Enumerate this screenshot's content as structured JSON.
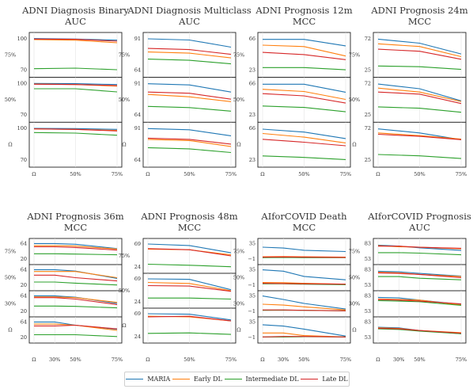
{
  "legend": [
    {
      "name": "MARIA",
      "color": "#1f77b4"
    },
    {
      "name": "Early DL",
      "color": "#ff7f0e"
    },
    {
      "name": "Intermediate DL",
      "color": "#2ca02c"
    },
    {
      "name": "Late DL",
      "color": "#d62728"
    }
  ],
  "chart_data": [
    {
      "type": "line",
      "title": [
        "ADNI Diagnosis Binary",
        "AUC"
      ],
      "x_labels": [
        "Ω",
        "50%",
        "75%"
      ],
      "rows": [
        {
          "ylabel": "75%",
          "ylim": [
            67,
            102
          ],
          "yticks": [
            "100",
            "70"
          ],
          "series": [
            [
              100,
              99.5,
              98.5
            ],
            [
              99,
              98.5,
              96
            ],
            [
              71.5,
              72,
              70.5
            ],
            [
              99.5,
              99.3,
              97.5
            ]
          ]
        },
        {
          "ylabel": "50%",
          "ylim": [
            67,
            102
          ],
          "yticks": [
            "100",
            "70"
          ],
          "series": [
            [
              100,
              99.8,
              99
            ],
            [
              99.5,
              99,
              97.5
            ],
            [
              95,
              95,
              92
            ],
            [
              99.3,
              99,
              98
            ]
          ]
        },
        {
          "ylabel": "Ω",
          "ylim": [
            67,
            102
          ],
          "yticks": [
            "100",
            "70"
          ],
          "series": [
            [
              100,
              99.8,
              99
            ],
            [
              99.5,
              99,
              98
            ],
            [
              96,
              95.5,
              93.5
            ],
            [
              99.5,
              99,
              97.5
            ]
          ]
        }
      ]
    },
    {
      "type": "line",
      "title": [
        "ADNI Diagnosis Multiclass",
        "AUC"
      ],
      "x_labels": [
        "Ω",
        "50%",
        "75%"
      ],
      "rows": [
        {
          "ylabel": "75%",
          "ylim": [
            62,
            93
          ],
          "yticks": [
            "91",
            "64"
          ],
          "series": [
            [
              91,
              90,
              84
            ],
            [
              80,
              79,
              75
            ],
            [
              74,
              73,
              70
            ],
            [
              83,
              82,
              78
            ]
          ]
        },
        {
          "ylabel": "50%",
          "ylim": [
            62,
            93
          ],
          "yticks": [
            "91",
            "64"
          ],
          "series": [
            [
              91,
              90,
              84
            ],
            [
              82,
              80,
              76
            ],
            [
              72,
              71,
              68
            ],
            [
              84,
              83,
              78
            ]
          ]
        },
        {
          "ylabel": "Ω",
          "ylim": [
            62,
            93
          ],
          "yticks": [
            "91",
            "64"
          ],
          "series": [
            [
              91,
              90,
              85
            ],
            [
              82,
              81,
              76
            ],
            [
              75,
              74,
              71
            ],
            [
              83,
              82,
              78
            ]
          ]
        }
      ]
    },
    {
      "type": "line",
      "title": [
        "ADNI Prognosis 12m",
        "MCC"
      ],
      "x_labels": [
        "Ω",
        "50%",
        "75%"
      ],
      "rows": [
        {
          "ylabel": "75%",
          "ylim": [
            19,
            70
          ],
          "yticks": [
            "66",
            "23"
          ],
          "series": [
            [
              66,
              66,
              57
            ],
            [
              58,
              56,
              43
            ],
            [
              27,
              27,
              24
            ],
            [
              48,
              45,
              38
            ]
          ]
        },
        {
          "ylabel": "50%",
          "ylim": [
            19,
            70
          ],
          "yticks": [
            "66",
            "23"
          ],
          "series": [
            [
              66,
              66,
              55
            ],
            [
              59,
              56,
              45
            ],
            [
              36,
              34,
              28
            ],
            [
              53,
              50,
              40
            ]
          ]
        },
        {
          "ylabel": "Ω",
          "ylim": [
            19,
            70
          ],
          "yticks": [
            "66",
            "23"
          ],
          "series": [
            [
              66,
              62,
              53
            ],
            [
              60,
              55,
              47
            ],
            [
              29,
              27,
              24
            ],
            [
              52,
              48,
              43
            ]
          ]
        }
      ]
    },
    {
      "type": "line",
      "title": [
        "ADNI Prognosis 24m",
        "MCC"
      ],
      "x_labels": [
        "Ω",
        "50%",
        "75%"
      ],
      "rows": [
        {
          "ylabel": "75%",
          "ylim": [
            21,
            76
          ],
          "yticks": [
            "72",
            "25"
          ],
          "series": [
            [
              72,
              66,
              50
            ],
            [
              65,
              61,
              46
            ],
            [
              32,
              31,
              27
            ],
            [
              57,
              54,
              42
            ]
          ]
        },
        {
          "ylabel": "50%",
          "ylim": [
            21,
            76
          ],
          "yticks": [
            "72",
            "25"
          ],
          "series": [
            [
              72,
              65,
              47
            ],
            [
              66,
              60,
              46
            ],
            [
              38,
              36,
              30
            ],
            [
              60,
              57,
              43
            ]
          ]
        },
        {
          "ylabel": "Ω",
          "ylim": [
            21,
            76
          ],
          "yticks": [
            "72",
            "25"
          ],
          "series": [
            [
              72,
              66,
              56
            ],
            [
              66,
              62,
              57
            ],
            [
              34,
              32,
              28
            ],
            [
              64,
              61,
              56
            ]
          ]
        }
      ]
    },
    {
      "type": "line",
      "title": [
        "ADNI Prognosis 36m",
        "MCC"
      ],
      "x_labels": [
        "Ω",
        "30%",
        "50%",
        "75%"
      ],
      "rows": [
        {
          "ylabel": "75%",
          "ylim": [
            17,
            67
          ],
          "yticks": [
            "64",
            "20"
          ],
          "series": [
            [
              64,
              64,
              62,
              50
            ],
            [
              58,
              58,
              57,
              49
            ],
            [
              36,
              36,
              35,
              33
            ],
            [
              55,
              55,
              53,
              46
            ]
          ]
        },
        {
          "ylabel": "50%",
          "ylim": [
            17,
            67
          ],
          "yticks": [
            "64",
            "20"
          ],
          "series": [
            [
              64,
              64,
              60,
              40
            ],
            [
              59,
              59,
              59,
              42
            ],
            [
              30,
              30,
              27,
              22
            ],
            [
              49,
              49,
              42,
              33
            ]
          ]
        },
        {
          "ylabel": "30%",
          "ylim": [
            17,
            67
          ],
          "yticks": [
            "64",
            "20"
          ],
          "series": [
            [
              64,
              64,
              60,
              43
            ],
            [
              61,
              61,
              59,
              46
            ],
            [
              36,
              36,
              35,
              31
            ],
            [
              59,
              59,
              55,
              40
            ]
          ]
        },
        {
          "ylabel": "Ω",
          "ylim": [
            17,
            67
          ],
          "yticks": [
            "64",
            "20"
          ],
          "series": [
            [
              64,
              64,
              55,
              44
            ],
            [
              58,
              58,
              55,
              41
            ],
            [
              29,
              29,
              29,
              24
            ],
            [
              53,
              53,
              55,
              45
            ]
          ]
        }
      ]
    },
    {
      "type": "line",
      "title": [
        "ADNI Prognosis 48m",
        "MCC"
      ],
      "x_labels": [
        "Ω",
        "50%",
        "75%"
      ],
      "rows": [
        {
          "ylabel": "75%",
          "ylim": [
            20,
            72
          ],
          "yticks": [
            "69",
            "24"
          ],
          "series": [
            [
              69,
              66,
              52
            ],
            [
              59,
              58,
              48
            ],
            [
              30,
              28,
              25
            ],
            [
              60,
              58,
              46
            ]
          ]
        },
        {
          "ylabel": "50%",
          "ylim": [
            20,
            72
          ],
          "yticks": [
            "69",
            "24"
          ],
          "series": [
            [
              69,
              68,
              48
            ],
            [
              62,
              60,
              46
            ],
            [
              32,
              32,
              30
            ],
            [
              56,
              55,
              45
            ]
          ]
        },
        {
          "ylabel": "Ω",
          "ylim": [
            20,
            72
          ],
          "yticks": [
            "69",
            "24"
          ],
          "series": [
            [
              69,
              68,
              57
            ],
            [
              64,
              63,
              55
            ],
            [
              31,
              32,
              29
            ],
            [
              63,
              64,
              55
            ]
          ]
        }
      ]
    },
    {
      "type": "line",
      "title": [
        "AIforCOVID Death",
        "MCC"
      ],
      "x_labels": [
        "Ω",
        "30%",
        "50%",
        "75%"
      ],
      "rows": [
        {
          "ylabel": "75%",
          "ylim": [
            -4,
            38
          ],
          "yticks": [
            "35",
            "−1"
          ],
          "series": [
            [
              27,
              25,
              20,
              17
            ],
            [
              5,
              5.5,
              5,
              4
            ],
            [
              3,
              3.5,
              3,
              3
            ],
            [
              4,
              4.5,
              4,
              3.5
            ]
          ]
        },
        {
          "ylabel": "50%",
          "ylim": [
            -4,
            38
          ],
          "yticks": [
            "35",
            "−1"
          ],
          "series": [
            [
              35,
              32,
              20,
              12
            ],
            [
              6,
              5.5,
              4,
              2
            ],
            [
              3,
              3,
              2,
              1
            ],
            [
              4,
              3.5,
              3,
              2
            ]
          ]
        },
        {
          "ylabel": "30%",
          "ylim": [
            -4,
            38
          ],
          "yticks": [
            "35",
            "−1"
          ],
          "series": [
            [
              35,
              27,
              18,
              5
            ],
            [
              16,
              14,
              10,
              3
            ],
            [
              2,
              2.5,
              2,
              1
            ],
            [
              3,
              3,
              2,
              1
            ]
          ]
        },
        {
          "ylabel": "Ω",
          "ylim": [
            -4,
            38
          ],
          "yticks": [
            "35",
            "−1"
          ],
          "series": [
            [
              29,
              26,
              19,
              3
            ],
            [
              10,
              10,
              4,
              1
            ],
            [
              1,
              1,
              1.5,
              1
            ],
            [
              1,
              2,
              2,
              1
            ]
          ]
        }
      ]
    },
    {
      "type": "line",
      "title": [
        "AIforCOVID Prognosis",
        "AUC"
      ],
      "x_labels": [
        "Ω",
        "30%",
        "50%",
        "75%"
      ],
      "rows": [
        {
          "ylabel": "75%",
          "ylim": [
            51,
            85
          ],
          "yticks": [
            "83",
            "53"
          ],
          "series": [
            [
              80,
              78,
              75,
              70
            ],
            [
              79,
              77,
              76,
              73
            ],
            [
              66,
              66,
              65,
              62
            ],
            [
              78,
              78,
              76,
              74
            ]
          ]
        },
        {
          "ylabel": "50%",
          "ylim": [
            51,
            85
          ],
          "yticks": [
            "83",
            "53"
          ],
          "series": [
            [
              80,
              79,
              76,
              71
            ],
            [
              78,
              77,
              74,
              70
            ],
            [
              70,
              70,
              67,
              64
            ],
            [
              77,
              76,
              74,
              68
            ]
          ]
        },
        {
          "ylabel": "30%",
          "ylim": [
            51,
            85
          ],
          "yticks": [
            "83",
            "53"
          ],
          "series": [
            [
              80,
              79,
              75,
              67
            ],
            [
              77,
              76,
              75,
              66
            ],
            [
              74,
              73,
              72,
              65
            ],
            [
              76,
              75,
              73,
              68
            ]
          ]
        },
        {
          "ylabel": "Ω",
          "ylim": [
            51,
            85
          ],
          "yticks": [
            "83",
            "53"
          ],
          "series": [
            [
              73,
              72,
              67,
              61
            ],
            [
              72,
              71,
              67,
              63
            ],
            [
              70,
              69,
              66,
              61
            ],
            [
              71,
              70,
              67,
              62
            ]
          ]
        }
      ]
    }
  ]
}
